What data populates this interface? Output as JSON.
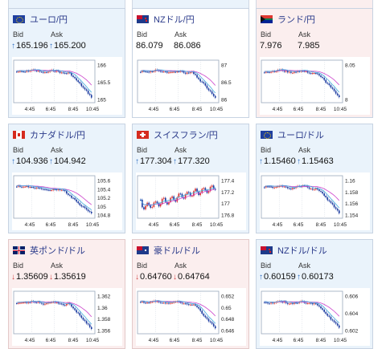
{
  "bid_label": "Bid",
  "ask_label": "Ask",
  "x_labels": [
    "4:45",
    "6:45",
    "8:45",
    "10:45"
  ],
  "colors": {
    "up": "#2a6cc0",
    "down": "#d04040",
    "ma_pink": "#cc44cc",
    "ma_blue": "#44aadd",
    "up_bg": "#eaf3fb",
    "down_bg": "#fbeeee"
  },
  "cards": [
    {
      "title": "ユーロ/円",
      "flag": "eu-flag",
      "trend": "up",
      "bid": "165.196",
      "ask": "165.200",
      "y_ticks": [
        "166",
        "165.5",
        "165"
      ]
    },
    {
      "title": "NZドル/円",
      "flag": "nz-flag",
      "trend": "none",
      "bid": "86.079",
      "ask": "86.086",
      "y_ticks": [
        "87",
        "86.5",
        "86"
      ]
    },
    {
      "title": "ランド/円",
      "flag": "za-flag",
      "trend": "none",
      "bid": "7.976",
      "ask": "7.985",
      "y_ticks": [
        "8.05",
        "8"
      ]
    },
    {
      "title": "カナダドル/円",
      "flag": "ca-flag",
      "trend": "up",
      "bid": "104.936",
      "ask": "104.942",
      "y_ticks": [
        "105.6",
        "105.4",
        "105.2",
        "105",
        "104.8"
      ]
    },
    {
      "title": "スイスフラン/円",
      "flag": "ch-flag",
      "trend": "up",
      "bid": "177.304",
      "ask": "177.320",
      "y_ticks": [
        "177.4",
        "177.2",
        "177",
        "176.8"
      ]
    },
    {
      "title": "ユーロ/ドル",
      "flag": "eu-flag",
      "trend": "up",
      "bid": "1.15460",
      "ask": "1.15463",
      "y_ticks": [
        "1.16",
        "1.158",
        "1.156",
        "1.154"
      ]
    },
    {
      "title": "英ポンド/ドル",
      "flag": "gb-flag",
      "trend": "down",
      "bid": "1.35609",
      "ask": "1.35619",
      "y_ticks": [
        "1.362",
        "1.36",
        "1.358",
        "1.356"
      ]
    },
    {
      "title": "豪ドル/ドル",
      "flag": "au-flag",
      "trend": "down",
      "bid": "0.64760",
      "ask": "0.64764",
      "y_ticks": [
        "0.652",
        "0.65",
        "0.648",
        "0.646"
      ]
    },
    {
      "title": "NZドル/ドル",
      "flag": "nz-flag",
      "trend": "up",
      "bid": "0.60159",
      "ask": "0.60173",
      "y_ticks": [
        "0.606",
        "0.604",
        "0.602"
      ]
    }
  ]
}
